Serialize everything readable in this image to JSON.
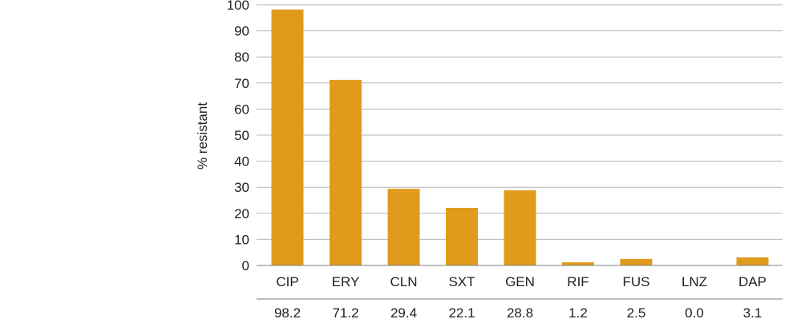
{
  "chart_data": {
    "type": "bar",
    "ylabel": "% resistant",
    "xlabel": "",
    "title": "",
    "ylim": [
      0,
      100
    ],
    "yticks": [
      0,
      10,
      20,
      30,
      40,
      50,
      60,
      70,
      80,
      90,
      100
    ],
    "categories": [
      "CIP",
      "ERY",
      "CLN",
      "SXT",
      "GEN",
      "RIF",
      "FUS",
      "LNZ",
      "DAP"
    ],
    "values": [
      98.2,
      71.2,
      29.4,
      22.1,
      28.8,
      1.2,
      2.5,
      0.0,
      3.1
    ],
    "value_labels": [
      "98.2",
      "71.2",
      "29.4",
      "22.1",
      "28.8",
      "1.2",
      "2.5",
      "0.0",
      "3.1"
    ],
    "grid": true,
    "legend": "none",
    "colors": {
      "bar": "#E09B1C",
      "grid": "#b5b5b5",
      "axis": "#7f7f7f"
    }
  }
}
